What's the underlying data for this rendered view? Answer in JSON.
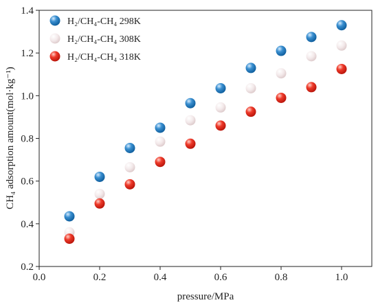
{
  "chart_data": {
    "type": "scatter",
    "xlabel": "pressure/MPa",
    "ylabel": "CH₄ adsorption amount(mol·kg⁻¹)",
    "xlim": [
      0.0,
      1.1
    ],
    "ylim": [
      0.2,
      1.4
    ],
    "xticks": [
      "0.0",
      "0.2",
      "0.4",
      "0.6",
      "0.8",
      "1.0"
    ],
    "yticks": [
      "0.2",
      "0.4",
      "0.6",
      "0.8",
      "1.0",
      "1.2",
      "1.4"
    ],
    "grid": false,
    "legend_position": "top-left",
    "x": [
      0.1,
      0.2,
      0.3,
      0.4,
      0.5,
      0.6,
      0.7,
      0.8,
      0.9,
      1.0
    ],
    "series": [
      {
        "name": "H₂/CH₄-CH₄ 298K",
        "color": "#1f77b4",
        "values": [
          0.435,
          0.62,
          0.755,
          0.85,
          0.965,
          1.035,
          1.13,
          1.21,
          1.275,
          1.33
        ]
      },
      {
        "name": "H₂/CH₄-CH₄ 308K",
        "color": "#f2e6e6",
        "values": [
          0.36,
          0.54,
          0.665,
          0.785,
          0.885,
          0.945,
          1.035,
          1.105,
          1.185,
          1.235
        ]
      },
      {
        "name": "H₂/CH₄-CH₄ 318K",
        "color": "#e8201a",
        "values": [
          0.33,
          0.495,
          0.585,
          0.69,
          0.775,
          0.86,
          0.925,
          0.99,
          1.04,
          1.125
        ]
      }
    ]
  }
}
